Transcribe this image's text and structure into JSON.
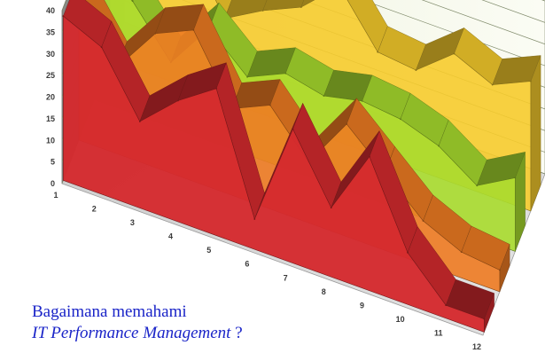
{
  "chart_data": {
    "type": "area",
    "style": "3d-stacked-depth",
    "categories": [
      "1",
      "2",
      "3",
      "4",
      "5",
      "6",
      "7",
      "8",
      "9",
      "10",
      "11",
      "12"
    ],
    "y_ticks": [
      "0",
      "5",
      "10",
      "15",
      "20",
      "25",
      "30",
      "35",
      "40"
    ],
    "ylim": [
      0,
      40
    ],
    "grid": true,
    "legend": "none",
    "series": [
      {
        "color": "#d42a2e",
        "values": [
          38,
          34,
          20,
          28,
          34,
          7,
          31,
          16,
          31,
          12,
          3,
          3
        ]
      },
      {
        "color": "#ee7b22",
        "values": [
          33,
          20,
          31,
          35,
          20,
          24,
          14,
          26,
          18,
          10,
          6,
          5
        ]
      },
      {
        "color": "#a8dc2e",
        "values": [
          30,
          26,
          15,
          26,
          18,
          22,
          20,
          22,
          21,
          18,
          12,
          17
        ]
      },
      {
        "color": "#f6cb2c",
        "values": [
          33,
          28,
          34,
          19,
          24,
          28,
          36,
          24,
          23,
          30,
          26,
          30
        ]
      }
    ]
  },
  "caption": {
    "line1": "Bagaimana memahami",
    "line2": "IT Performance Management",
    "line2_suffix": " ?"
  }
}
